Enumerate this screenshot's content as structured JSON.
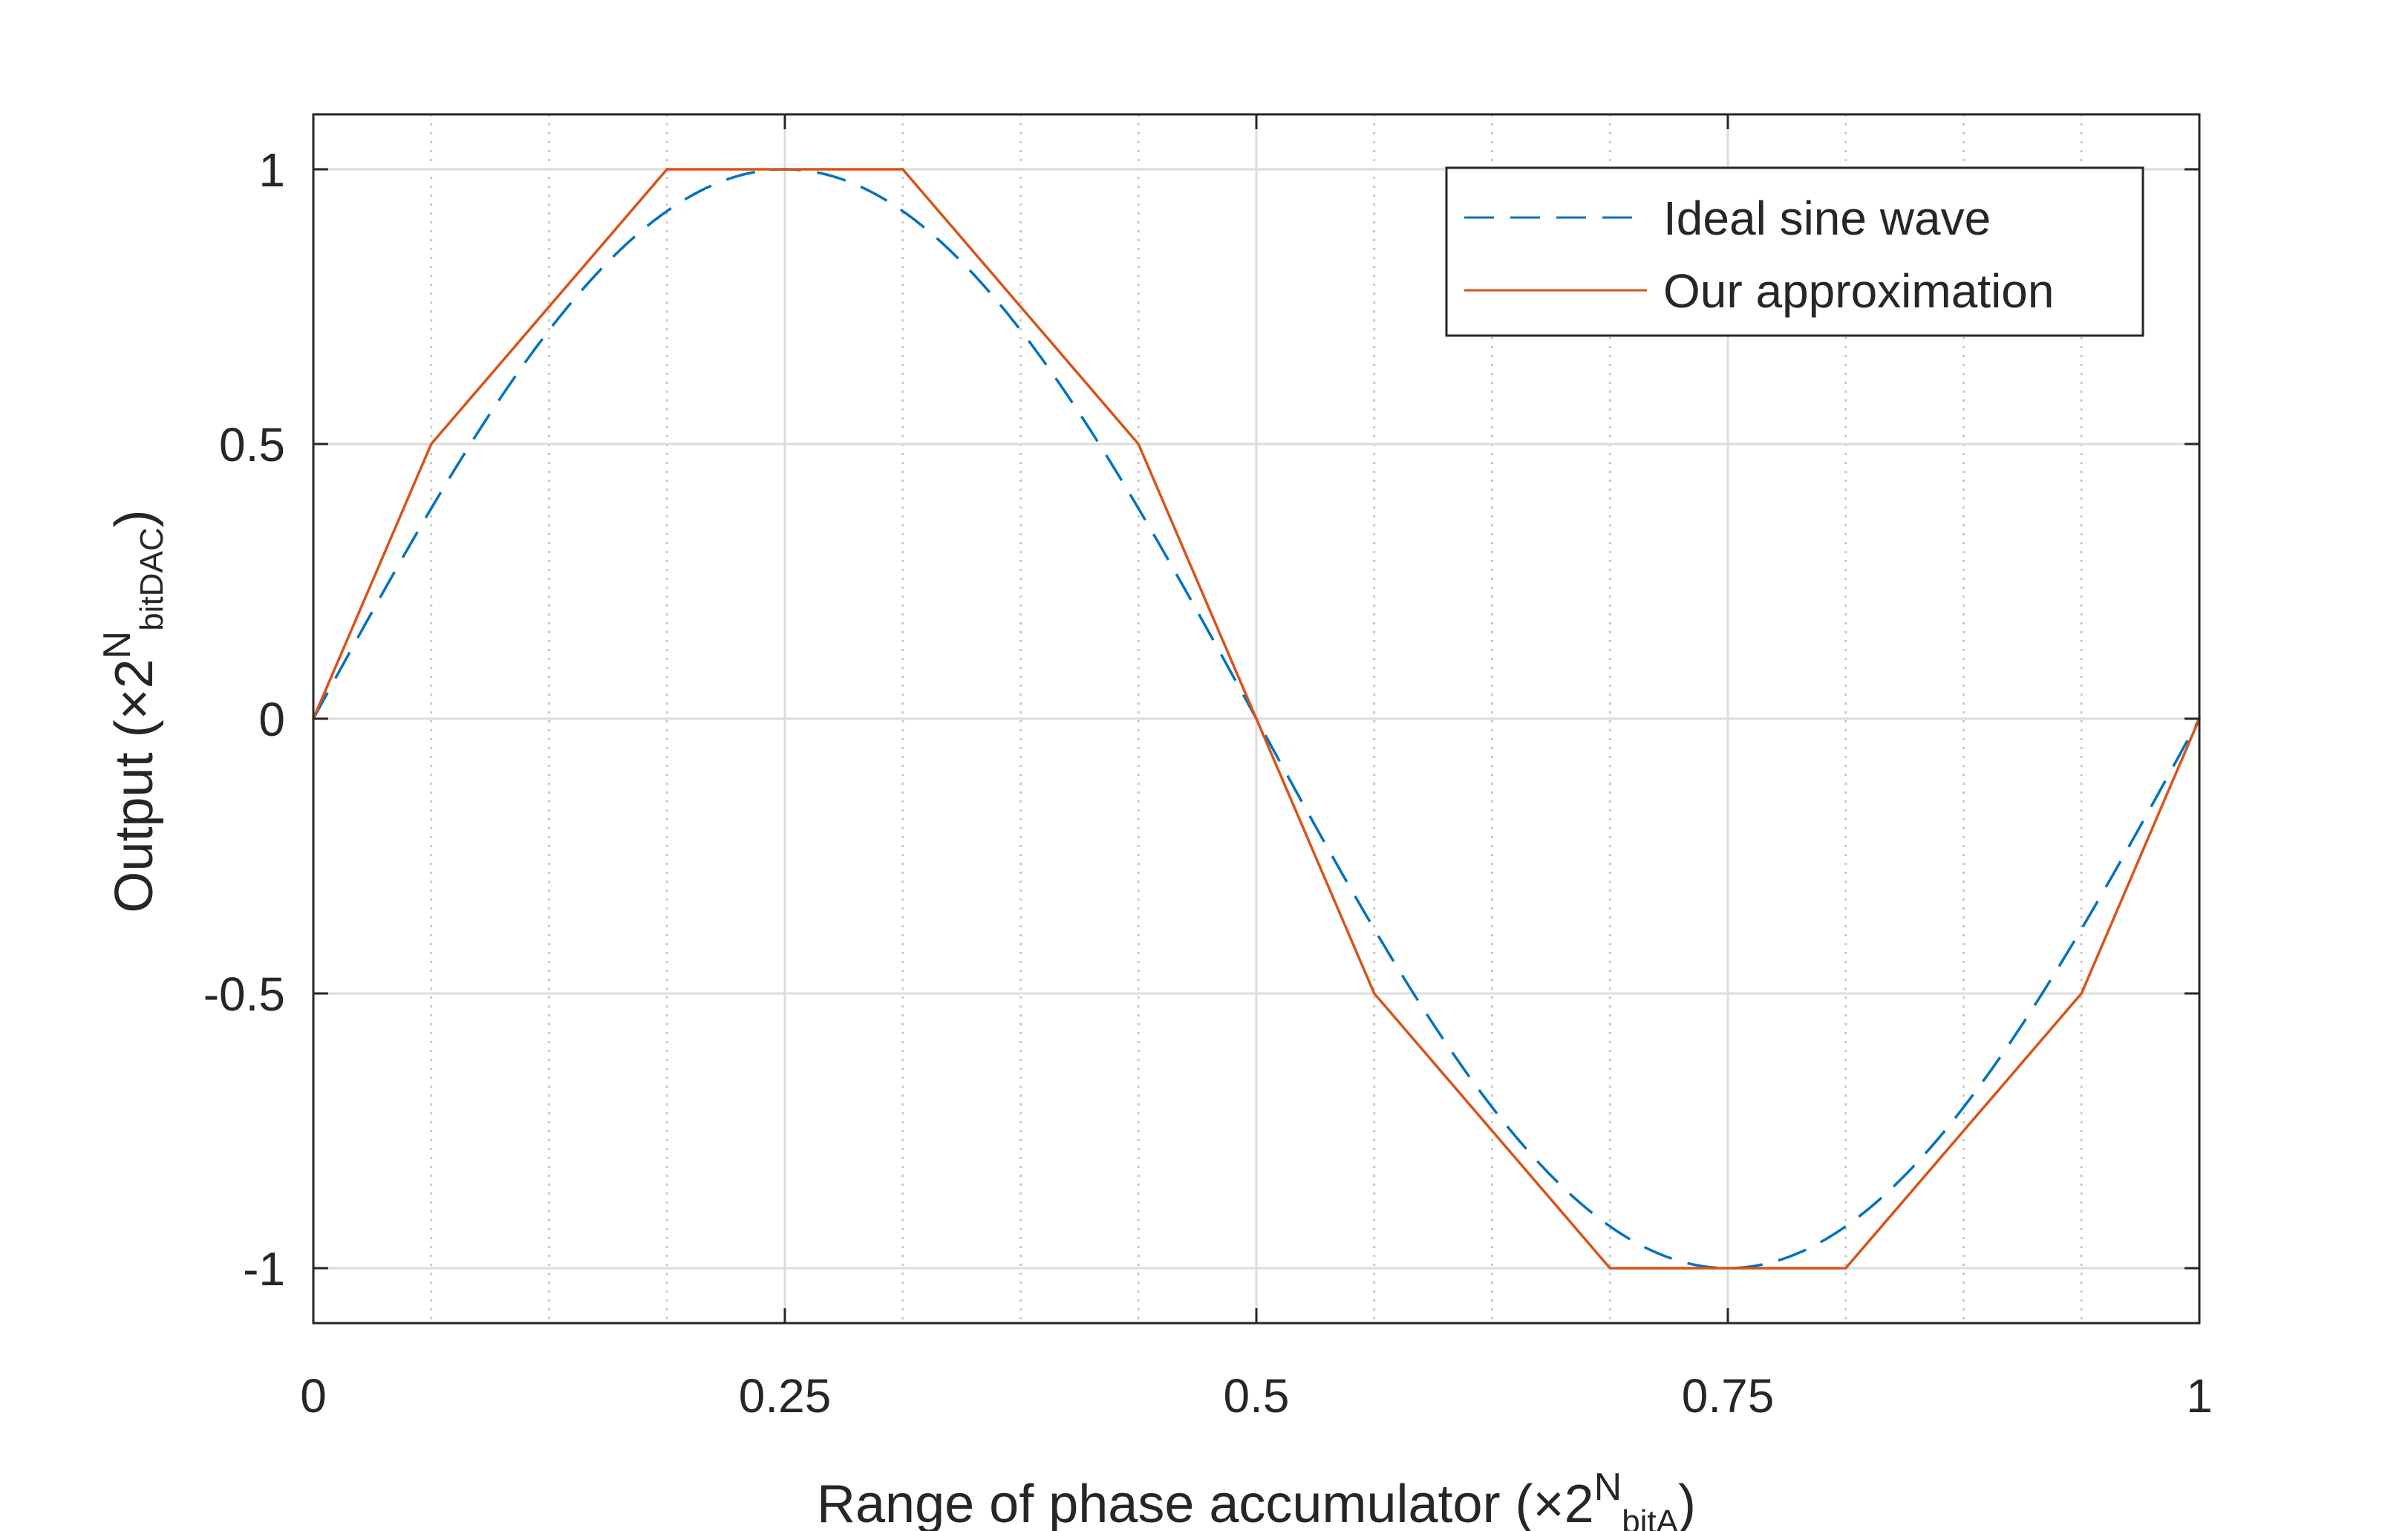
{
  "chart_data": {
    "type": "line",
    "xlabel": {
      "prefix": "Range of phase accumulator (×2",
      "sup": "N",
      "sub": "bitA",
      "suffix": ")"
    },
    "ylabel": {
      "prefix": "Output (×2",
      "sup": "N",
      "sub": "bitDAC",
      "suffix": ")"
    },
    "xlim": [
      0,
      1
    ],
    "ylim": [
      -1.1,
      1.1
    ],
    "x_ticks": [
      0,
      0.25,
      0.5,
      0.75,
      1
    ],
    "x_tick_labels": [
      "0",
      "0.25",
      "0.5",
      "0.75",
      "1"
    ],
    "y_ticks": [
      -1,
      -0.5,
      0,
      0.5,
      1
    ],
    "y_tick_labels": [
      "-1",
      "-0.5",
      "0",
      "0.5",
      "1"
    ],
    "minor_grid_x": [
      0.0625,
      0.125,
      0.1875,
      0.3125,
      0.375,
      0.4375,
      0.5625,
      0.625,
      0.6875,
      0.8125,
      0.875,
      0.9375
    ],
    "grid": true,
    "legend_position": "top-right",
    "series": [
      {
        "name": "Ideal sine wave",
        "function": "sin(2*pi*x)",
        "style": "dashed",
        "color": "#0072BD"
      },
      {
        "name": "Our approximation",
        "style": "solid",
        "color": "#D95319",
        "x": [
          0,
          0.0625,
          0.1875,
          0.3125,
          0.4375,
          0.5625,
          0.6875,
          0.8125,
          0.9375,
          1
        ],
        "y": [
          0,
          0.5,
          1,
          1,
          0.5,
          -0.5,
          -1,
          -1,
          -0.5,
          0
        ]
      }
    ]
  }
}
